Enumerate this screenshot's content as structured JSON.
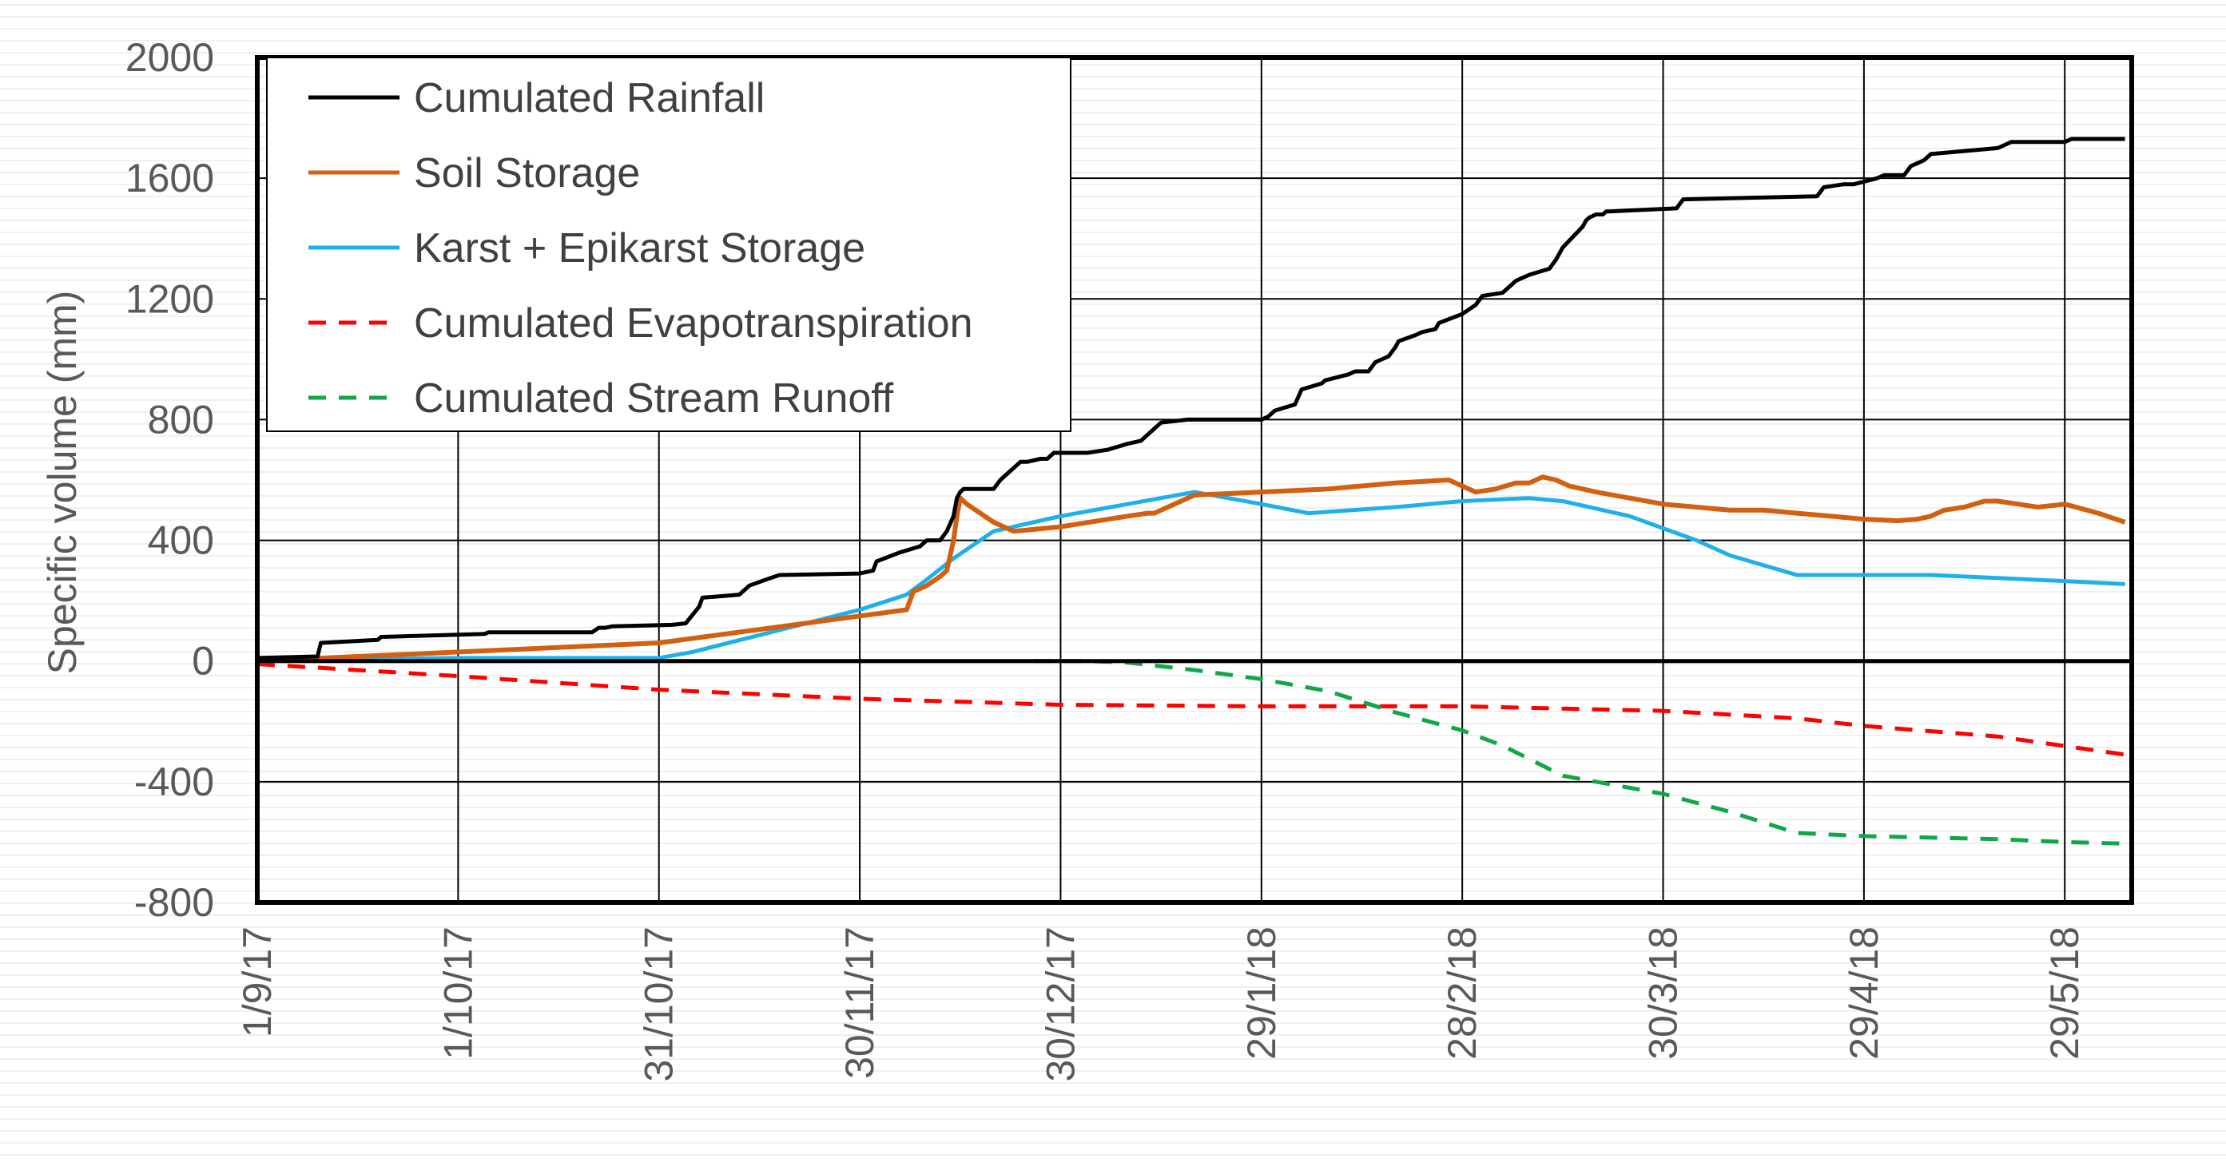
{
  "chart_data": {
    "type": "line",
    "title": "",
    "xlabel": "",
    "ylabel": "Specific volume (mm)",
    "ylim": [
      -800,
      2000
    ],
    "yticks": [
      2000,
      1600,
      1200,
      800,
      400,
      0,
      -400,
      -800
    ],
    "ytick_labels": [
      "2000",
      "1600",
      "1200",
      "800",
      "400",
      "0",
      "-400",
      "-800"
    ],
    "x_range_days": [
      0,
      280
    ],
    "xticks_days": [
      0,
      30,
      60,
      90,
      120,
      150,
      180,
      210,
      240,
      270
    ],
    "xtick_labels": [
      "1/9/17",
      "1/10/17",
      "31/10/17",
      "30/11/17",
      "30/12/17",
      "29/1/18",
      "28/2/18",
      "30/3/18",
      "29/4/18",
      "29/5/18"
    ],
    "grid": true,
    "legend_position": "top-left",
    "colors": {
      "rainfall": "#000000",
      "soil": "#D35F10",
      "karst": "#1EB0E8",
      "et": "#FF0000",
      "runoff": "#11A64A"
    },
    "series": [
      {
        "name": "Cumulated Rainfall",
        "color": "#000000",
        "style": "solid",
        "x": [
          0,
          9,
          9.5,
          18,
          18.5,
          34,
          34.5,
          50,
          51,
          52,
          53,
          62,
          64,
          66,
          66.5,
          72,
          73.5,
          76,
          78,
          90,
          92,
          92.5,
          96,
          99,
          100,
          102,
          103,
          104,
          104.5,
          105,
          105.5,
          110,
          111,
          112,
          113,
          114,
          115,
          117,
          118,
          119,
          120,
          124,
          127,
          130,
          132,
          133,
          134,
          135,
          139,
          144,
          150,
          151,
          152,
          155,
          156,
          159,
          159.5,
          163,
          164,
          166,
          167,
          169,
          170,
          170.5,
          173,
          174,
          176,
          176.5,
          180,
          182,
          183,
          186,
          187,
          188,
          190,
          193,
          194,
          195,
          198,
          198.5,
          199,
          200,
          201,
          201.5,
          202,
          212,
          213,
          233,
          234,
          237,
          238,
          238.5,
          242,
          243,
          246,
          247,
          248,
          249,
          250,
          260,
          261,
          262,
          270,
          271,
          279
        ],
        "y": [
          10,
          15,
          60,
          70,
          80,
          90,
          95,
          95,
          110,
          110,
          115,
          120,
          125,
          180,
          210,
          220,
          250,
          270,
          285,
          290,
          300,
          330,
          360,
          380,
          400,
          400,
          430,
          480,
          540,
          560,
          570,
          570,
          600,
          620,
          640,
          660,
          660,
          670,
          670,
          690,
          690,
          690,
          700,
          720,
          730,
          750,
          770,
          790,
          800,
          800,
          800,
          810,
          830,
          850,
          900,
          920,
          930,
          950,
          960,
          960,
          990,
          1010,
          1040,
          1060,
          1080,
          1090,
          1100,
          1120,
          1150,
          1180,
          1210,
          1220,
          1240,
          1260,
          1280,
          1300,
          1330,
          1370,
          1440,
          1460,
          1470,
          1480,
          1480,
          1490,
          1490,
          1500,
          1530,
          1540,
          1570,
          1580,
          1580,
          1580,
          1600,
          1610,
          1610,
          1640,
          1650,
          1660,
          1680,
          1700,
          1710,
          1720,
          1720,
          1730,
          1730
        ]
      },
      {
        "name": "Soil Storage",
        "color": "#D35F10",
        "style": "solid",
        "x": [
          0,
          30,
          60,
          97,
          98,
          100,
          102,
          103,
          104,
          104.5,
          105,
          106,
          108,
          110,
          113,
          120,
          130,
          133,
          134,
          140,
          150,
          160,
          170,
          178,
          180,
          182,
          185,
          188,
          190,
          192,
          194,
          196,
          198,
          200,
          205,
          210,
          215,
          220,
          225,
          230,
          235,
          240,
          245,
          248,
          250,
          252,
          255,
          258,
          260,
          263,
          266,
          270,
          275,
          279
        ],
        "y": [
          0,
          30,
          60,
          170,
          230,
          250,
          280,
          300,
          400,
          480,
          540,
          520,
          490,
          460,
          430,
          445,
          480,
          490,
          490,
          550,
          560,
          570,
          590,
          600,
          580,
          560,
          570,
          590,
          590,
          610,
          600,
          580,
          570,
          560,
          540,
          520,
          510,
          500,
          500,
          490,
          480,
          470,
          465,
          470,
          480,
          500,
          510,
          530,
          530,
          520,
          510,
          520,
          490,
          460
        ]
      },
      {
        "name": "Karst + Epikarst Storage",
        "color": "#1EB0E8",
        "style": "solid",
        "x": [
          0,
          30,
          60,
          65,
          90,
          97,
          100,
          104,
          110,
          120,
          130,
          140,
          150,
          157,
          170,
          180,
          190,
          195,
          205,
          210,
          215,
          220,
          230,
          240,
          250,
          260,
          270,
          279
        ],
        "y": [
          0,
          10,
          10,
          30,
          170,
          220,
          270,
          340,
          430,
          480,
          520,
          560,
          520,
          490,
          510,
          530,
          540,
          530,
          480,
          440,
          400,
          350,
          285,
          285,
          285,
          275,
          265,
          255
        ]
      },
      {
        "name": "Cumulated Evapotranspiration",
        "color": "#FF0000",
        "style": "dashed",
        "x": [
          0,
          30,
          60,
          90,
          120,
          150,
          180,
          210,
          230,
          240,
          260,
          279
        ],
        "y": [
          -10,
          -50,
          -95,
          -125,
          -145,
          -150,
          -150,
          -165,
          -190,
          -215,
          -250,
          -310
        ]
      },
      {
        "name": "Cumulated Stream Runoff",
        "color": "#11A64A",
        "style": "dashed",
        "x": [
          116,
          124,
          130,
          140,
          150,
          160,
          170,
          180,
          186,
          195,
          210,
          220,
          230,
          240,
          250,
          260,
          270,
          279
        ],
        "y": [
          0,
          0,
          -5,
          -30,
          -60,
          -100,
          -170,
          -230,
          -280,
          -380,
          -440,
          -500,
          -570,
          -580,
          -585,
          -590,
          -600,
          -605
        ]
      }
    ]
  }
}
